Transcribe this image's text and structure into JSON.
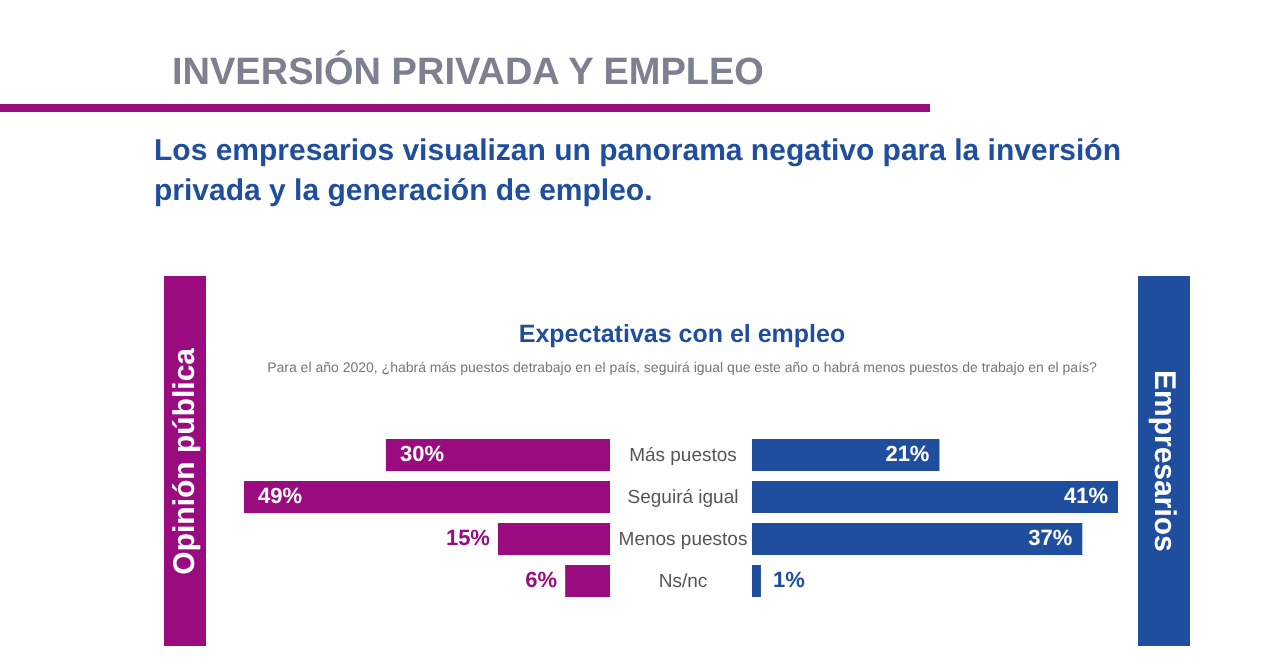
{
  "chart_data": [
    {
      "type": "bar",
      "orientation": "horizontal",
      "title": "Expectativas con el empleo",
      "subtitle": "Para el año 2020, ¿habrá más puestos detrabajo en el país, seguirá igual que este año o habrá menos puestos de trabajo en el país?",
      "annotations": [
        "INVERSIÓN PRIVADA Y EMPLEO",
        "Los empresarios visualizan un panorama negativo para la inversión privada y la generación de empleo."
      ],
      "categories": [
        "Más puestos",
        "Seguirá igual",
        "Menos puestos",
        "Ns/nc"
      ],
      "series": [
        {
          "name": "Opinión pública",
          "color": "#9b0b80",
          "values": [
            30,
            49,
            15,
            6
          ],
          "value_labels": [
            "30%",
            "49%",
            "15%",
            "6%"
          ]
        }
      ]
    },
    {
      "type": "bar",
      "orientation": "horizontal",
      "categories": [
        null,
        null,
        null,
        null
      ],
      "series": [
        {
          "name": "Empresarios",
          "color": "#1f4e9e",
          "values": [
            21,
            41,
            37,
            1
          ],
          "value_labels": [
            "21%",
            "41%",
            "37%",
            "1%"
          ]
        }
      ]
    }
  ]
}
